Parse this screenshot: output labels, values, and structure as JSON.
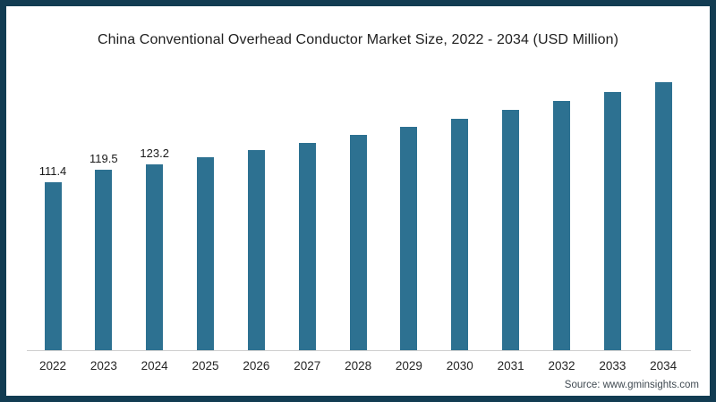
{
  "frame": {
    "border_color": "#123c52",
    "background_color": "#ffffff"
  },
  "chart_data": {
    "type": "bar",
    "title": "China Conventional Overhead Conductor Market Size, 2022 - 2034 (USD Million)",
    "categories": [
      "2022",
      "2023",
      "2024",
      "2025",
      "2026",
      "2027",
      "2028",
      "2029",
      "2030",
      "2031",
      "2032",
      "2033",
      "2034"
    ],
    "values": [
      111.4,
      119.5,
      123.2,
      127.7,
      132.3,
      137.2,
      142.3,
      147.6,
      153.0,
      158.7,
      164.5,
      170.6,
      176.9
    ],
    "value_labels_shown": [
      "111.4",
      "119.5",
      "123.2"
    ],
    "xlabel": "",
    "ylabel": "",
    "ylim": [
      0,
      185
    ],
    "grid": false,
    "legend": false,
    "bar_color": "#2d7191",
    "axis_line_color": "#cfcfcf"
  },
  "source": {
    "label": "Source: www.gminsights.com"
  }
}
